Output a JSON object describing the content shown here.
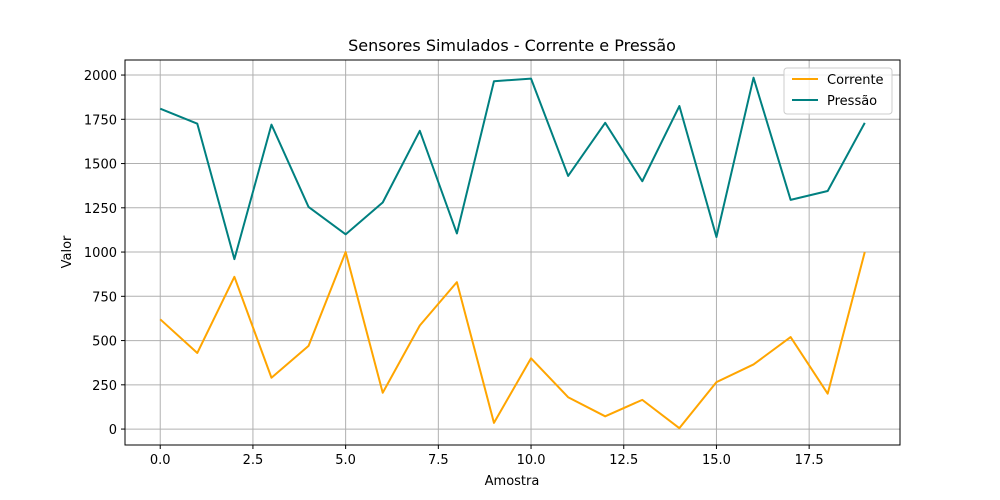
{
  "chart_data": {
    "type": "line",
    "title": "Sensores Simulados - Corrente e Pressão",
    "xlabel": "Amostra",
    "ylabel": "Valor",
    "xlim": [
      -0.95,
      19.95
    ],
    "ylim": [
      -90,
      2085
    ],
    "x_ticks": [
      0.0,
      2.5,
      5.0,
      7.5,
      10.0,
      12.5,
      15.0,
      17.5
    ],
    "x_tick_labels": [
      "0.0",
      "2.5",
      "5.0",
      "7.5",
      "10.0",
      "12.5",
      "15.0",
      "17.5"
    ],
    "y_ticks": [
      0,
      250,
      500,
      750,
      1000,
      1250,
      1500,
      1750,
      2000
    ],
    "y_tick_labels": [
      "0",
      "250",
      "500",
      "750",
      "1000",
      "1250",
      "1500",
      "1750",
      "2000"
    ],
    "grid": true,
    "legend_position": "top-right",
    "x": [
      0,
      1,
      2,
      3,
      4,
      5,
      6,
      7,
      8,
      9,
      10,
      11,
      12,
      13,
      14,
      15,
      16,
      17,
      18,
      19
    ],
    "series": [
      {
        "name": "Corrente",
        "color": "#FFA500",
        "values": [
          620,
          430,
          860,
          290,
          470,
          1000,
          205,
          585,
          830,
          35,
          400,
          180,
          72,
          165,
          5,
          265,
          365,
          520,
          200,
          1000
        ]
      },
      {
        "name": "Pressão",
        "color": "#008080",
        "values": [
          1810,
          1725,
          960,
          1720,
          1255,
          1100,
          1280,
          1685,
          1105,
          1965,
          1980,
          1430,
          1730,
          1400,
          1825,
          1085,
          1985,
          1295,
          1345,
          1730
        ]
      }
    ]
  }
}
